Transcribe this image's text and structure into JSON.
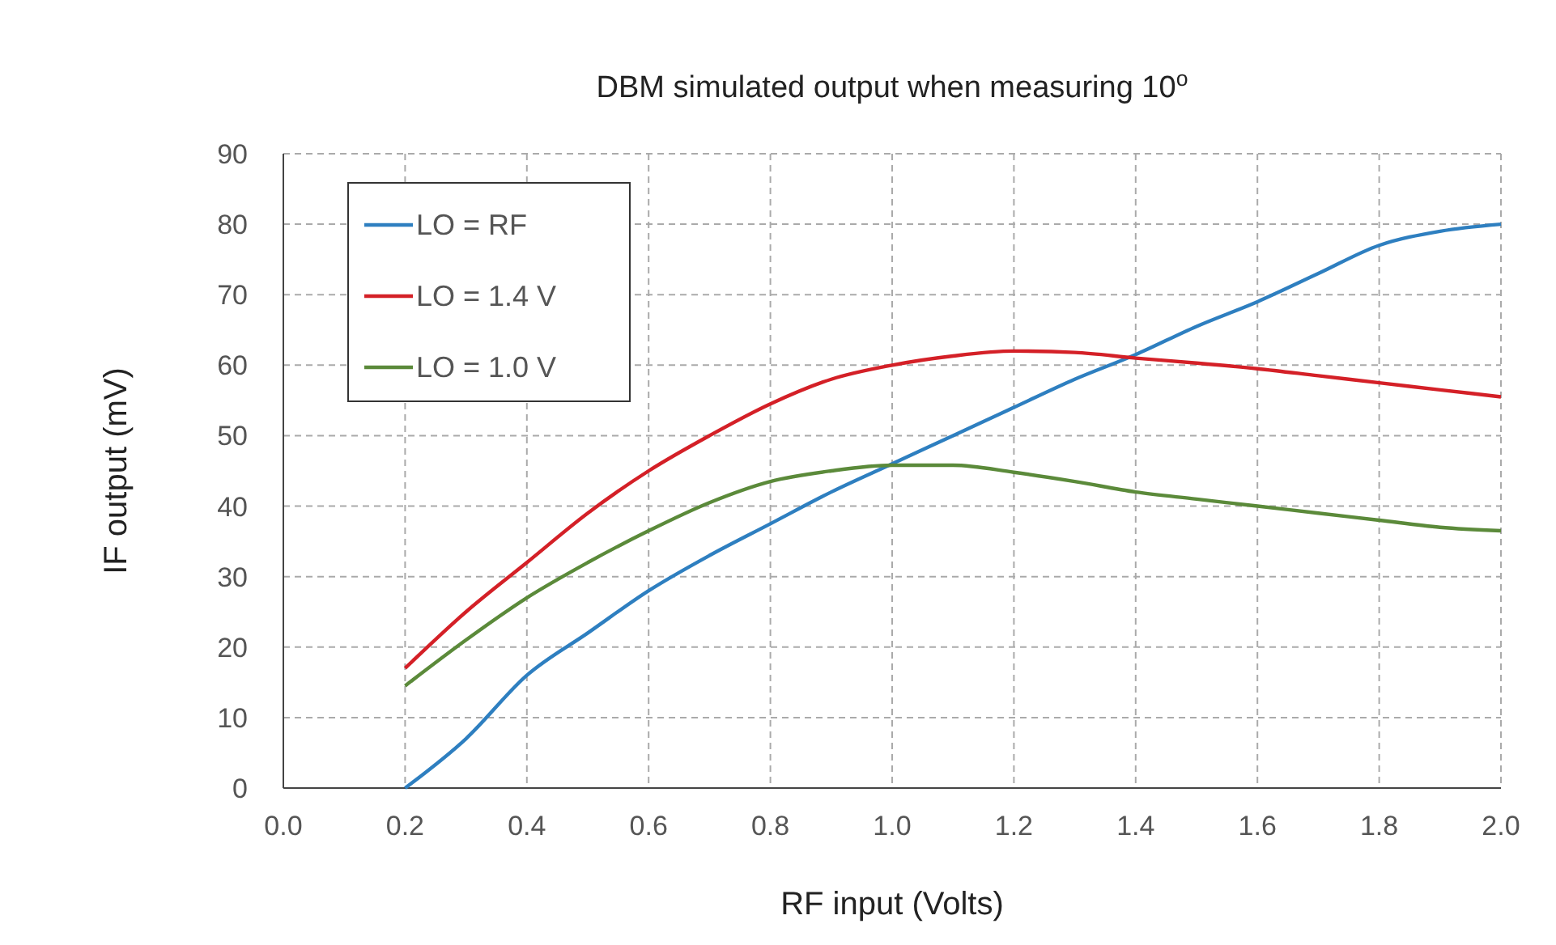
{
  "chart_data": {
    "type": "line",
    "title": "DBM simulated output when measuring 10$^{o}$",
    "xlabel": "RF input (Volts)",
    "ylabel": "IF output (mV)",
    "x": [
      0.2,
      0.3,
      0.4,
      0.5,
      0.6,
      0.7,
      0.8,
      0.9,
      1.0,
      1.1,
      1.2,
      1.3,
      1.4,
      1.5,
      1.6,
      1.7,
      1.8,
      1.9,
      2.0
    ],
    "series": [
      {
        "name": "LO = RF",
        "color": "#2e7fc0",
        "values": [
          0,
          7,
          16,
          22,
          28,
          33,
          37.5,
          42,
          46,
          50,
          54,
          58,
          61.5,
          65.5,
          69,
          73,
          77,
          79,
          80
        ]
      },
      {
        "name": "LO = 1.4 V",
        "color": "#d42027",
        "values": [
          17,
          25,
          32,
          39,
          45,
          50,
          54.5,
          58,
          60,
          61.3,
          62,
          61.8,
          61,
          60.3,
          59.5,
          58.5,
          57.5,
          56.5,
          55.5
        ]
      },
      {
        "name": "LO = 1.0 V",
        "color": "#5b8a3a",
        "values": [
          14.5,
          21,
          27,
          32,
          36.5,
          40.5,
          43.5,
          45,
          45.8,
          45.8,
          44.8,
          43.5,
          42,
          41,
          40,
          39,
          38,
          37,
          36.5
        ]
      }
    ],
    "xlim": [
      0,
      2
    ],
    "xticks": [
      {
        "value": 0,
        "label": "0.0"
      },
      {
        "value": 0.2,
        "label": "0.2"
      },
      {
        "value": 0.4,
        "label": "0.4"
      },
      {
        "value": 0.6,
        "label": "0.6"
      },
      {
        "value": 0.8,
        "label": "0.8"
      },
      {
        "value": 1,
        "label": "1.0"
      },
      {
        "value": 1.2,
        "label": "1.2"
      },
      {
        "value": 1.4,
        "label": "1.4"
      },
      {
        "value": 1.6,
        "label": "1.6"
      },
      {
        "value": 1.8,
        "label": "1.8"
      },
      {
        "value": 2,
        "label": "2.0"
      }
    ],
    "ylim": [
      0,
      90
    ],
    "yticks": [
      0,
      10,
      20,
      30,
      40,
      50,
      60,
      70,
      80,
      90
    ],
    "grid": true,
    "legend": "top left",
    "line_style": "solid",
    "marker": "none"
  }
}
